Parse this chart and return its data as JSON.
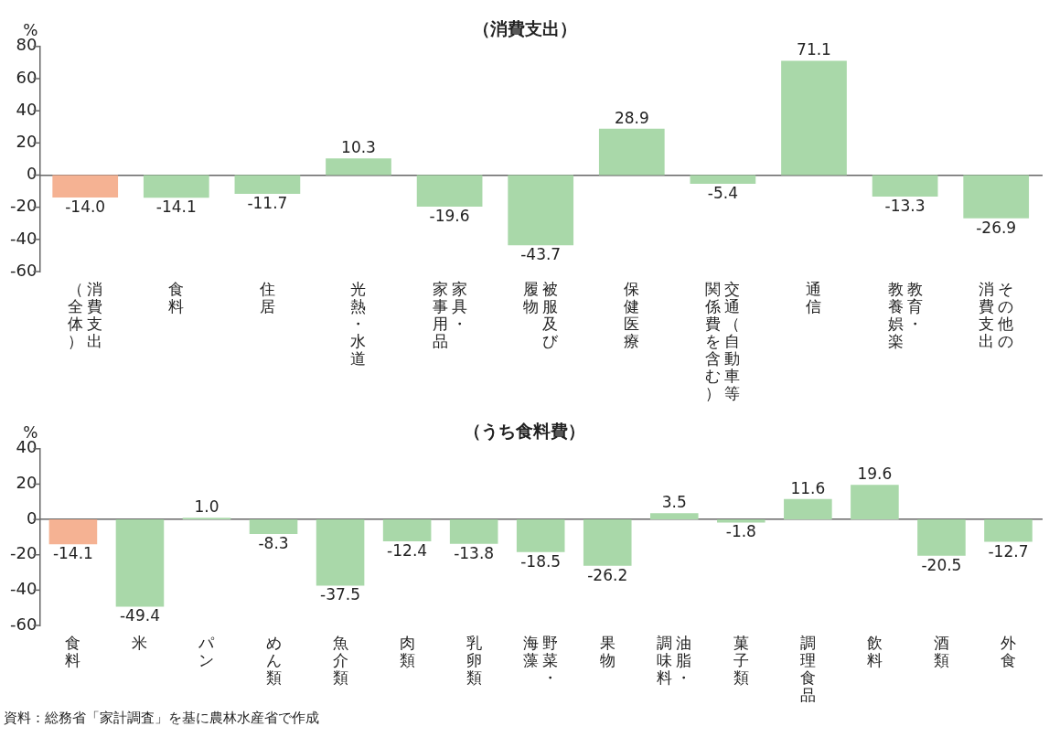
{
  "chart_data": [
    {
      "type": "bar",
      "title": "（消費支出）",
      "ylabel": "%",
      "categories": [
        "消費支出（全体）",
        "食料",
        "住居",
        "光熱・水道",
        "家具・家事用品",
        "被服及び履物",
        "保健医療",
        "交通（自動車等関係費を含む）",
        "通信",
        "教育・教養娯楽",
        "その他の消費支出"
      ],
      "values": [
        -14.0,
        -14.1,
        -11.7,
        10.3,
        -19.6,
        -43.7,
        28.9,
        -5.4,
        71.1,
        -13.3,
        -26.9
      ],
      "colors": [
        "#f5b293",
        "#a9d8a9",
        "#a9d8a9",
        "#a9d8a9",
        "#a9d8a9",
        "#a9d8a9",
        "#a9d8a9",
        "#a9d8a9",
        "#a9d8a9",
        "#a9d8a9",
        "#a9d8a9"
      ],
      "value_labels": [
        "-14.0",
        "-14.1",
        "-11.7",
        "10.3",
        "-19.6",
        "-43.7",
        "28.9",
        "-5.4",
        "71.1",
        "-13.3",
        "-26.9"
      ],
      "ylim": [
        -60,
        80
      ],
      "yticks": [
        -60,
        -40,
        -20,
        0,
        20,
        40,
        60,
        80
      ]
    },
    {
      "type": "bar",
      "title": "（うち食料費）",
      "ylabel": "%",
      "categories": [
        "食料",
        "米",
        "パン",
        "めん類",
        "魚介類",
        "肉類",
        "乳卵類",
        "野菜・海藻",
        "果物",
        "油脂・調味料",
        "菓子類",
        "調理食品",
        "飲料",
        "酒類",
        "外食"
      ],
      "values": [
        -14.1,
        -49.4,
        1.0,
        -8.3,
        -37.5,
        -12.4,
        -13.8,
        -18.5,
        -26.2,
        3.5,
        -1.8,
        11.6,
        19.6,
        -20.5,
        -12.7
      ],
      "colors": [
        "#f5b293",
        "#a9d8a9",
        "#a9d8a9",
        "#a9d8a9",
        "#a9d8a9",
        "#a9d8a9",
        "#a9d8a9",
        "#a9d8a9",
        "#a9d8a9",
        "#a9d8a9",
        "#a9d8a9",
        "#a9d8a9",
        "#a9d8a9",
        "#a9d8a9",
        "#a9d8a9"
      ],
      "value_labels": [
        "-14.1",
        "-49.4",
        "1.0",
        "-8.3",
        "-37.5",
        "-12.4",
        "-13.8",
        "-18.5",
        "-26.2",
        "3.5",
        "-1.8",
        "11.6",
        "19.6",
        "-20.5",
        "-12.7"
      ],
      "ylim": [
        -60,
        40
      ],
      "yticks": [
        -60,
        -40,
        -20,
        0,
        20,
        40
      ],
      "annotations": [
        "資料：総務省「家計調査」を基に農林水産省で作成"
      ]
    }
  ]
}
